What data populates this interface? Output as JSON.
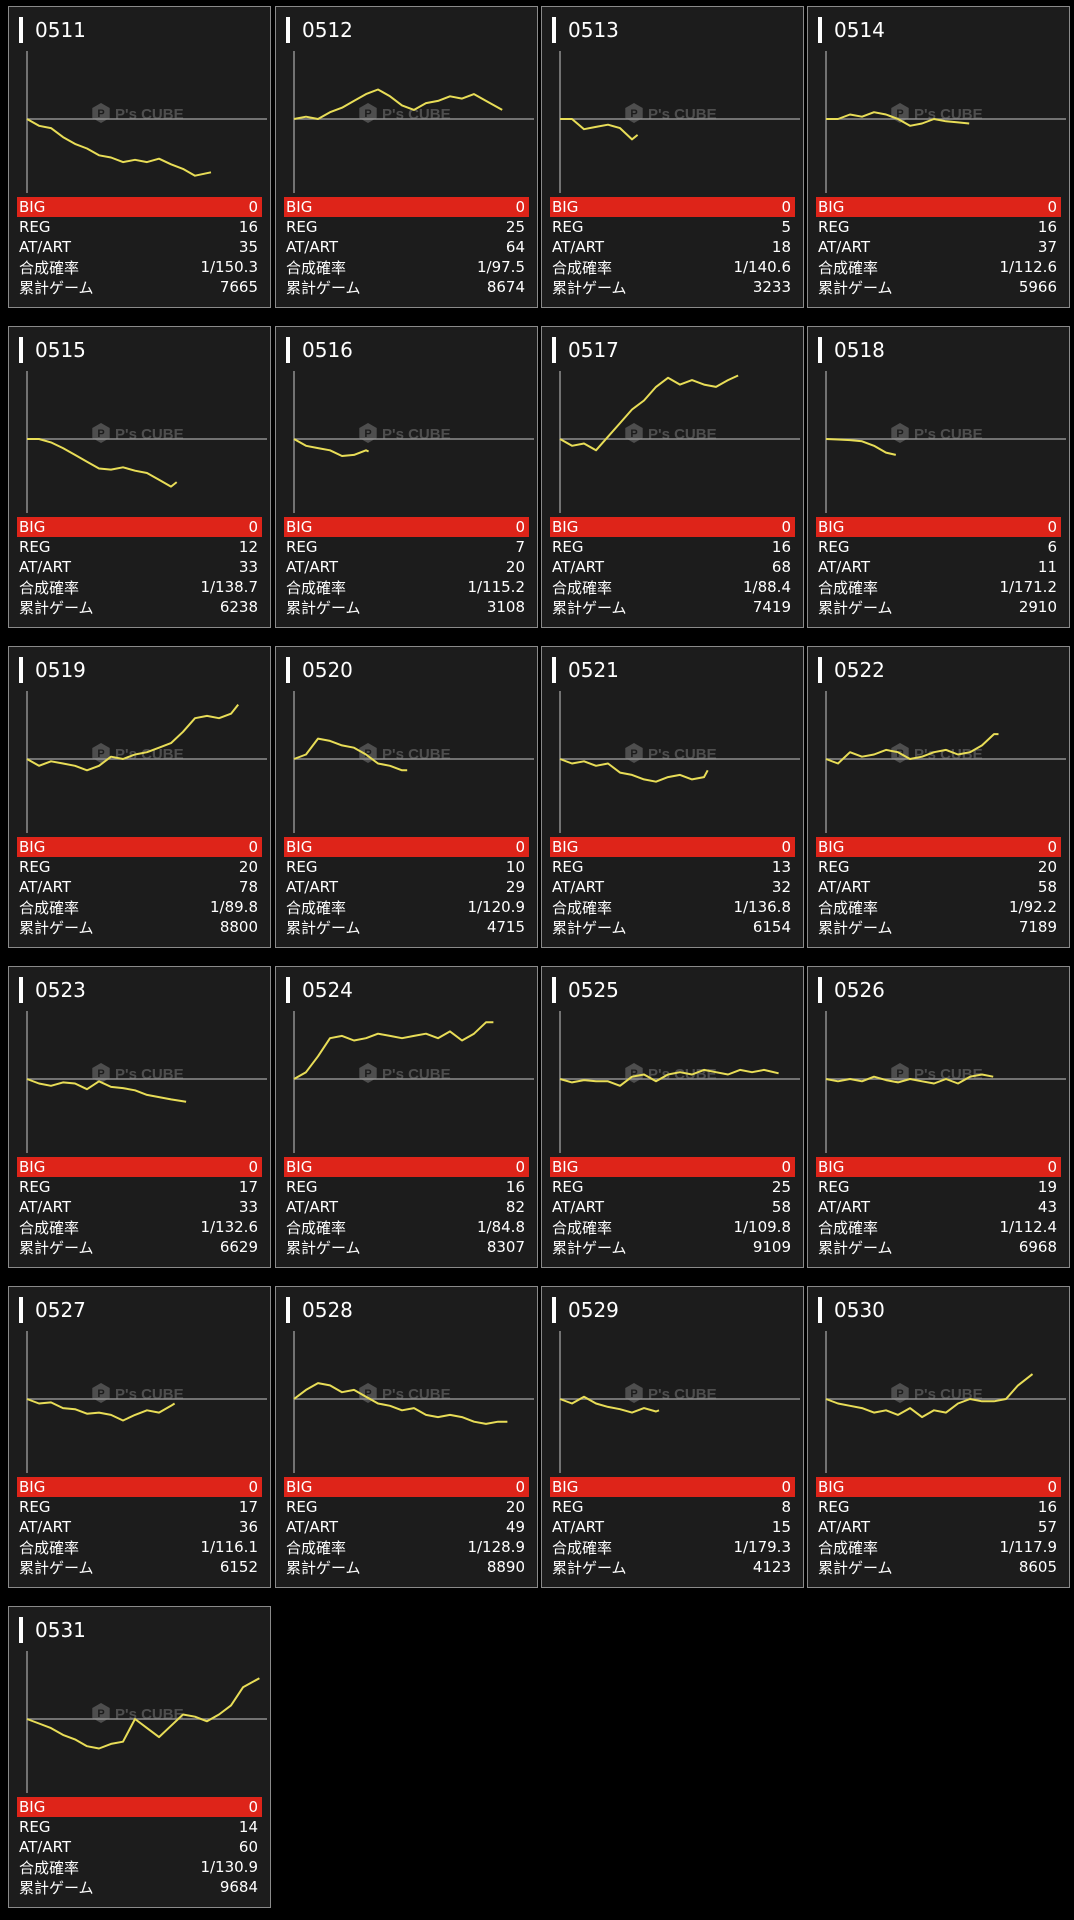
{
  "colors": {
    "background": "#000000",
    "card_background": "#1c1c1c",
    "card_border": "#8a8a8a",
    "big_row": "#de2419",
    "line": "#e8dd57",
    "axis": "#8f8f8f"
  },
  "labels": {
    "big": "BIG",
    "reg": "REG",
    "at": "AT/ART",
    "prob": "合成確率",
    "games": "累計ゲーム"
  },
  "watermark": {
    "brand": "P's CUBE",
    "icon": "hexagon-p-logo-icon"
  },
  "cards": [
    {
      "title": "0511",
      "big": "0",
      "reg": "16",
      "at": "35",
      "prob": "1/150.3",
      "games": "7665"
    },
    {
      "title": "0512",
      "big": "0",
      "reg": "25",
      "at": "64",
      "prob": "1/97.5",
      "games": "8674"
    },
    {
      "title": "0513",
      "big": "0",
      "reg": "5",
      "at": "18",
      "prob": "1/140.6",
      "games": "3233"
    },
    {
      "title": "0514",
      "big": "0",
      "reg": "16",
      "at": "37",
      "prob": "1/112.6",
      "games": "5966"
    },
    {
      "title": "0515",
      "big": "0",
      "reg": "12",
      "at": "33",
      "prob": "1/138.7",
      "games": "6238"
    },
    {
      "title": "0516",
      "big": "0",
      "reg": "7",
      "at": "20",
      "prob": "1/115.2",
      "games": "3108"
    },
    {
      "title": "0517",
      "big": "0",
      "reg": "16",
      "at": "68",
      "prob": "1/88.4",
      "games": "7419"
    },
    {
      "title": "0518",
      "big": "0",
      "reg": "6",
      "at": "11",
      "prob": "1/171.2",
      "games": "2910"
    },
    {
      "title": "0519",
      "big": "0",
      "reg": "20",
      "at": "78",
      "prob": "1/89.8",
      "games": "8800"
    },
    {
      "title": "0520",
      "big": "0",
      "reg": "10",
      "at": "29",
      "prob": "1/120.9",
      "games": "4715"
    },
    {
      "title": "0521",
      "big": "0",
      "reg": "13",
      "at": "32",
      "prob": "1/136.8",
      "games": "6154"
    },
    {
      "title": "0522",
      "big": "0",
      "reg": "20",
      "at": "58",
      "prob": "1/92.2",
      "games": "7189"
    },
    {
      "title": "0523",
      "big": "0",
      "reg": "17",
      "at": "33",
      "prob": "1/132.6",
      "games": "6629"
    },
    {
      "title": "0524",
      "big": "0",
      "reg": "16",
      "at": "82",
      "prob": "1/84.8",
      "games": "8307"
    },
    {
      "title": "0525",
      "big": "0",
      "reg": "25",
      "at": "58",
      "prob": "1/109.8",
      "games": "9109"
    },
    {
      "title": "0526",
      "big": "0",
      "reg": "19",
      "at": "43",
      "prob": "1/112.4",
      "games": "6968"
    },
    {
      "title": "0527",
      "big": "0",
      "reg": "17",
      "at": "36",
      "prob": "1/116.1",
      "games": "6152"
    },
    {
      "title": "0528",
      "big": "0",
      "reg": "20",
      "at": "49",
      "prob": "1/128.9",
      "games": "8890"
    },
    {
      "title": "0529",
      "big": "0",
      "reg": "8",
      "at": "15",
      "prob": "1/179.3",
      "games": "4123"
    },
    {
      "title": "0530",
      "big": "0",
      "reg": "16",
      "at": "57",
      "prob": "1/117.9",
      "games": "8605"
    },
    {
      "title": "0531",
      "big": "0",
      "reg": "14",
      "at": "60",
      "prob": "1/130.9",
      "games": "9684"
    }
  ],
  "chart_data": [
    {
      "type": "line",
      "title": "0511",
      "x": [
        0,
        500,
        1000,
        1500,
        2000,
        2500,
        3000,
        3500,
        4000,
        4500,
        5000,
        5500,
        6000,
        6500,
        7000,
        7665
      ],
      "y": [
        0,
        -300,
        -400,
        -800,
        -1100,
        -1300,
        -1600,
        -1700,
        -1900,
        -1800,
        -1900,
        -1750,
        -2000,
        -2200,
        -2500,
        -2350
      ],
      "ylim": [
        -3000,
        3000
      ]
    },
    {
      "type": "line",
      "title": "0512",
      "x": [
        0,
        500,
        1000,
        1500,
        2000,
        2500,
        3000,
        3500,
        4000,
        4500,
        5000,
        5500,
        6000,
        6500,
        7000,
        7500,
        8000,
        8674
      ],
      "y": [
        0,
        100,
        0,
        300,
        500,
        800,
        1100,
        1300,
        1000,
        600,
        400,
        700,
        800,
        1000,
        900,
        1100,
        800,
        400
      ],
      "ylim": [
        -3000,
        3000
      ]
    },
    {
      "type": "line",
      "title": "0513",
      "x": [
        0,
        500,
        1000,
        1500,
        2000,
        2500,
        3000,
        3233
      ],
      "y": [
        0,
        0,
        -450,
        -350,
        -250,
        -400,
        -900,
        -700
      ],
      "ylim": [
        -3000,
        3000
      ]
    },
    {
      "type": "line",
      "title": "0514",
      "x": [
        0,
        500,
        1000,
        1500,
        2000,
        2500,
        3000,
        3500,
        4000,
        4500,
        5000,
        5500,
        5966
      ],
      "y": [
        0,
        0,
        200,
        100,
        300,
        200,
        0,
        -300,
        -200,
        0,
        -100,
        -150,
        -200
      ],
      "ylim": [
        -3000,
        3000
      ]
    },
    {
      "type": "line",
      "title": "0515",
      "x": [
        0,
        500,
        1000,
        1500,
        2000,
        2500,
        3000,
        3500,
        4000,
        4500,
        5000,
        5500,
        6000,
        6238
      ],
      "y": [
        0,
        0,
        -150,
        -400,
        -700,
        -1000,
        -1300,
        -1350,
        -1250,
        -1400,
        -1500,
        -1800,
        -2100,
        -1900
      ],
      "ylim": [
        -3000,
        3000
      ]
    },
    {
      "type": "line",
      "title": "0516",
      "x": [
        0,
        500,
        1000,
        1500,
        2000,
        2500,
        3000,
        3108
      ],
      "y": [
        0,
        -300,
        -400,
        -500,
        -750,
        -700,
        -500,
        -550
      ],
      "ylim": [
        -3000,
        3000
      ]
    },
    {
      "type": "line",
      "title": "0517",
      "x": [
        0,
        500,
        1000,
        1500,
        2000,
        2500,
        3000,
        3500,
        4000,
        4500,
        5000,
        5500,
        6000,
        6500,
        7000,
        7419
      ],
      "y": [
        0,
        -300,
        -200,
        -500,
        100,
        700,
        1300,
        1700,
        2300,
        2700,
        2400,
        2600,
        2400,
        2300,
        2600,
        2800
      ],
      "ylim": [
        -3000,
        3000
      ]
    },
    {
      "type": "line",
      "title": "0518",
      "x": [
        0,
        500,
        1000,
        1500,
        2000,
        2500,
        2910
      ],
      "y": [
        0,
        -20,
        -50,
        -100,
        -300,
        -600,
        -700
      ],
      "ylim": [
        -3000,
        3000
      ]
    },
    {
      "type": "line",
      "title": "0519",
      "x": [
        0,
        500,
        1000,
        1500,
        2000,
        2500,
        3000,
        3500,
        4000,
        4500,
        5000,
        5500,
        6000,
        6500,
        7000,
        7500,
        8000,
        8500,
        8800
      ],
      "y": [
        0,
        -300,
        -100,
        -200,
        -300,
        -500,
        -300,
        100,
        0,
        200,
        300,
        500,
        700,
        1200,
        1800,
        1900,
        1800,
        2000,
        2400
      ],
      "ylim": [
        -3000,
        3000
      ]
    },
    {
      "type": "line",
      "title": "0520",
      "x": [
        0,
        500,
        1000,
        1500,
        2000,
        2500,
        3000,
        3500,
        4000,
        4500,
        4715
      ],
      "y": [
        0,
        200,
        900,
        800,
        600,
        500,
        200,
        -200,
        -300,
        -500,
        -500
      ],
      "ylim": [
        -3000,
        3000
      ]
    },
    {
      "type": "line",
      "title": "0521",
      "x": [
        0,
        500,
        1000,
        1500,
        2000,
        2500,
        3000,
        3500,
        4000,
        4500,
        5000,
        5500,
        6000,
        6154
      ],
      "y": [
        0,
        -200,
        -100,
        -300,
        -200,
        -600,
        -700,
        -900,
        -1000,
        -800,
        -700,
        -900,
        -800,
        -500
      ],
      "ylim": [
        -3000,
        3000
      ]
    },
    {
      "type": "line",
      "title": "0522",
      "x": [
        0,
        500,
        1000,
        1500,
        2000,
        2500,
        3000,
        3500,
        4000,
        4500,
        5000,
        5500,
        6000,
        6500,
        7000,
        7189
      ],
      "y": [
        0,
        -200,
        300,
        100,
        200,
        400,
        300,
        0,
        100,
        300,
        400,
        200,
        300,
        600,
        1100,
        1100
      ],
      "ylim": [
        -3000,
        3000
      ]
    },
    {
      "type": "line",
      "title": "0523",
      "x": [
        0,
        500,
        1000,
        1500,
        2000,
        2500,
        3000,
        3500,
        4000,
        4500,
        5000,
        5500,
        6000,
        6629
      ],
      "y": [
        0,
        -200,
        -300,
        -150,
        -200,
        -450,
        -100,
        -350,
        -400,
        -500,
        -700,
        -800,
        -900,
        -1000
      ],
      "ylim": [
        -3000,
        3000
      ]
    },
    {
      "type": "line",
      "title": "0524",
      "x": [
        0,
        500,
        1000,
        1500,
        2000,
        2500,
        3000,
        3500,
        4000,
        4500,
        5000,
        5500,
        6000,
        6500,
        7000,
        7500,
        8000,
        8307
      ],
      "y": [
        0,
        300,
        1000,
        1800,
        1900,
        1700,
        1800,
        2000,
        1900,
        1800,
        1900,
        2000,
        1800,
        2100,
        1700,
        2000,
        2500,
        2500
      ],
      "ylim": [
        -3000,
        3000
      ]
    },
    {
      "type": "line",
      "title": "0525",
      "x": [
        0,
        500,
        1000,
        1500,
        2000,
        2500,
        3000,
        3500,
        4000,
        4500,
        5000,
        5500,
        6000,
        6500,
        7000,
        7500,
        8000,
        8500,
        9109
      ],
      "y": [
        0,
        -150,
        -50,
        -100,
        -100,
        -300,
        100,
        200,
        -100,
        200,
        300,
        200,
        400,
        300,
        200,
        400,
        300,
        400,
        250
      ],
      "ylim": [
        -3000,
        3000
      ]
    },
    {
      "type": "line",
      "title": "0526",
      "x": [
        0,
        500,
        1000,
        1500,
        2000,
        2500,
        3000,
        3500,
        4000,
        4500,
        5000,
        5500,
        6000,
        6500,
        6968
      ],
      "y": [
        0,
        -100,
        0,
        -100,
        100,
        -50,
        -150,
        0,
        -100,
        -200,
        0,
        -200,
        100,
        200,
        100
      ],
      "ylim": [
        -3000,
        3000
      ]
    },
    {
      "type": "line",
      "title": "0527",
      "x": [
        0,
        500,
        1000,
        1500,
        2000,
        2500,
        3000,
        3500,
        4000,
        4500,
        5000,
        5500,
        6000,
        6152
      ],
      "y": [
        0,
        -200,
        -150,
        -400,
        -450,
        -650,
        -600,
        -700,
        -950,
        -700,
        -500,
        -600,
        -300,
        -200
      ],
      "ylim": [
        -3000,
        3000
      ]
    },
    {
      "type": "line",
      "title": "0528",
      "x": [
        0,
        500,
        1000,
        1500,
        2000,
        2500,
        3000,
        3500,
        4000,
        4500,
        5000,
        5500,
        6000,
        6500,
        7000,
        7500,
        8000,
        8500,
        8890
      ],
      "y": [
        0,
        400,
        700,
        600,
        300,
        400,
        100,
        -200,
        -300,
        -500,
        -400,
        -700,
        -800,
        -700,
        -800,
        -1000,
        -1100,
        -1000,
        -1000
      ],
      "ylim": [
        -3000,
        3000
      ]
    },
    {
      "type": "line",
      "title": "0529",
      "x": [
        0,
        500,
        1000,
        1500,
        2000,
        2500,
        3000,
        3500,
        4000,
        4123
      ],
      "y": [
        0,
        -200,
        100,
        -200,
        -350,
        -450,
        -600,
        -400,
        -550,
        -500
      ],
      "ylim": [
        -3000,
        3000
      ]
    },
    {
      "type": "line",
      "title": "0530",
      "x": [
        0,
        500,
        1000,
        1500,
        2000,
        2500,
        3000,
        3500,
        4000,
        4500,
        5000,
        5500,
        6000,
        6500,
        7000,
        7500,
        8000,
        8605
      ],
      "y": [
        0,
        -200,
        -300,
        -400,
        -600,
        -500,
        -700,
        -400,
        -800,
        -500,
        -600,
        -200,
        0,
        -100,
        -100,
        0,
        600,
        1100
      ],
      "ylim": [
        -3000,
        3000
      ]
    },
    {
      "type": "line",
      "title": "0531",
      "x": [
        0,
        500,
        1000,
        1500,
        2000,
        2500,
        3000,
        3500,
        4000,
        4500,
        5000,
        5500,
        6000,
        6500,
        7000,
        7500,
        8000,
        8500,
        9000,
        9684
      ],
      "y": [
        0,
        -200,
        -400,
        -700,
        -900,
        -1200,
        -1300,
        -1100,
        -1000,
        0,
        -400,
        -800,
        -300,
        200,
        100,
        -100,
        200,
        600,
        1400,
        1800
      ],
      "ylim": [
        -3000,
        3000
      ]
    }
  ]
}
